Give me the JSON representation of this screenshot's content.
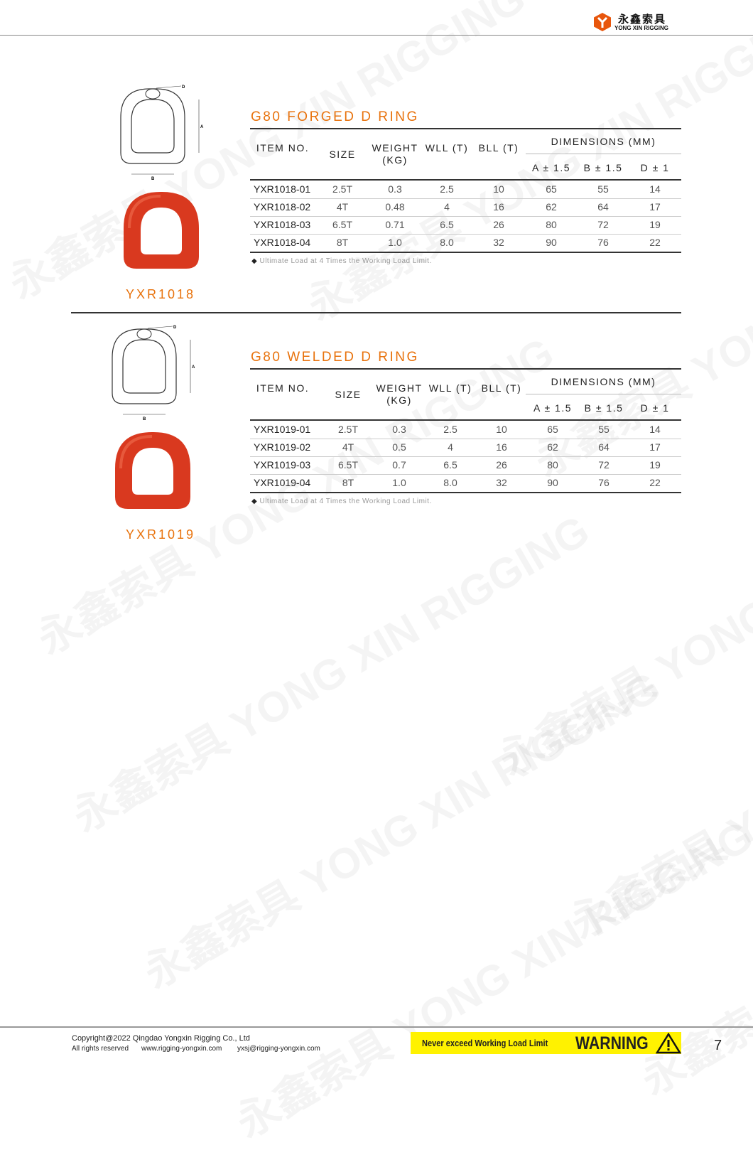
{
  "brand": {
    "cn": "永鑫索具",
    "en": "YONG XIN RIGGING",
    "color": "#e8560c"
  },
  "watermark": "永鑫索具 YONG XIN RIGGING",
  "sections": [
    {
      "title": "G80 FORGED D RING",
      "code": "YXR1018",
      "headers": {
        "item": "ITEM NO.",
        "size": "SIZE",
        "weight": "WEIGHT (KG)",
        "wll": "WLL (T)",
        "bll": "BLL (T)",
        "dimensions": "DIMENSIONS (MM)",
        "a": "A ± 1.5",
        "b": "B ± 1.5",
        "d": "D ± 1"
      },
      "rows": [
        [
          "YXR1018-01",
          "2.5T",
          "0.3",
          "2.5",
          "10",
          "65",
          "55",
          "14"
        ],
        [
          "YXR1018-02",
          "4T",
          "0.48",
          "4",
          "16",
          "62",
          "64",
          "17"
        ],
        [
          "YXR1018-03",
          "6.5T",
          "0.71",
          "6.5",
          "26",
          "80",
          "72",
          "19"
        ],
        [
          "YXR1018-04",
          "8T",
          "1.0",
          "8.0",
          "32",
          "90",
          "76",
          "22"
        ]
      ],
      "note": "Ultimate Load at 4 Times the Working Load Limit.",
      "drawing_labels": {
        "a": "A",
        "b": "B",
        "d": "D"
      }
    },
    {
      "title": "G80 WELDED D RING",
      "code": "YXR1019",
      "headers": {
        "item": "ITEM NO.",
        "size": "SIZE",
        "weight": "WEIGHT (KG)",
        "wll": "WLL (T)",
        "bll": "BLL (T)",
        "dimensions": "DIMENSIONS (MM)",
        "a": "A ± 1.5",
        "b": "B ± 1.5",
        "d": "D ± 1"
      },
      "rows": [
        [
          "YXR1019-01",
          "2.5T",
          "0.3",
          "2.5",
          "10",
          "65",
          "55",
          "14"
        ],
        [
          "YXR1019-02",
          "4T",
          "0.5",
          "4",
          "16",
          "62",
          "64",
          "17"
        ],
        [
          "YXR1019-03",
          "6.5T",
          "0.7",
          "6.5",
          "26",
          "80",
          "72",
          "19"
        ],
        [
          "YXR1019-04",
          "8T",
          "1.0",
          "8.0",
          "32",
          "90",
          "76",
          "22"
        ]
      ],
      "note": "Ultimate Load at 4 Times the Working Load Limit.",
      "drawing_labels": {
        "a": "A",
        "b": "B",
        "d": "D"
      }
    }
  ],
  "footer": {
    "copyright": "Copyright@2022 Qingdao Yongxin Rigging Co., Ltd",
    "rights": "All rights reserved",
    "website": "www.rigging-yongxin.com",
    "email": "yxsj@rigging-yongxin.com",
    "warning_text": "Never exceed Working Load Limit",
    "warning_label": "WARNING",
    "warning_color": "#fff200",
    "page": "7"
  },
  "colors": {
    "accent": "#e8720c",
    "ring": "#d9391f"
  }
}
